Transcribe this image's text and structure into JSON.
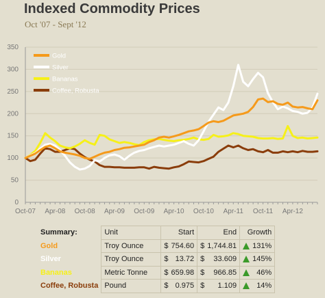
{
  "chart_data": {
    "type": "line",
    "title": "Indexed Commodity Prices",
    "subtitle": "Oct '07 - Sept '12",
    "xlabel": "",
    "ylabel": "",
    "ylim": [
      0,
      350
    ],
    "yticks": [
      0,
      50,
      100,
      150,
      200,
      250,
      300,
      350
    ],
    "xticks": [
      "Oct-07",
      "Apr-08",
      "Oct-08",
      "Apr-09",
      "Oct-09",
      "Apr-10",
      "Oct-10",
      "Apr-11",
      "Oct-11",
      "Apr-12"
    ],
    "legend_position": "top-left",
    "x_months": [
      0,
      1,
      2,
      3,
      4,
      5,
      6,
      7,
      8,
      9,
      10,
      11,
      12,
      13,
      14,
      15,
      16,
      17,
      18,
      19,
      20,
      21,
      22,
      23,
      24,
      25,
      26,
      27,
      28,
      29,
      30,
      31,
      32,
      33,
      34,
      35,
      36,
      37,
      38,
      39,
      40,
      41,
      42,
      43,
      44,
      45,
      46,
      47,
      48,
      49,
      50,
      51,
      52,
      53,
      54,
      55,
      56,
      57,
      58,
      59
    ],
    "series": [
      {
        "name": "Gold",
        "color": "#f59a1b",
        "values": [
          100,
          105,
          110,
          118,
          125,
          128,
          122,
          115,
          112,
          110,
          108,
          105,
          100,
          98,
          103,
          108,
          112,
          114,
          118,
          120,
          123,
          124,
          126,
          128,
          130,
          136,
          140,
          146,
          148,
          146,
          149,
          152,
          156,
          160,
          162,
          165,
          172,
          180,
          183,
          181,
          184,
          190,
          196,
          198,
          200,
          204,
          215,
          232,
          234,
          226,
          228,
          222,
          220,
          225,
          216,
          214,
          215,
          212,
          210,
          230
        ]
      },
      {
        "name": "Silver",
        "color": "#ffffff",
        "values": [
          100,
          106,
          111,
          121,
          130,
          132,
          128,
          118,
          105,
          90,
          80,
          74,
          76,
          82,
          95,
          92,
          100,
          106,
          108,
          104,
          96,
          105,
          112,
          116,
          118,
          122,
          125,
          128,
          126,
          128,
          130,
          134,
          138,
          132,
          128,
          140,
          160,
          182,
          198,
          214,
          208,
          225,
          262,
          310,
          272,
          262,
          278,
          292,
          282,
          246,
          226,
          210,
          216,
          212,
          206,
          204,
          200,
          202,
          214,
          245
        ]
      },
      {
        "name": "Bananas",
        "color": "#f6f019",
        "values": [
          100,
          107,
          116,
          134,
          156,
          146,
          138,
          128,
          124,
          122,
          126,
          132,
          140,
          134,
          130,
          152,
          150,
          142,
          138,
          134,
          136,
          134,
          131,
          129,
          136,
          140,
          142,
          143,
          141,
          139,
          138,
          140,
          141,
          143,
          146,
          142,
          141,
          143,
          152,
          148,
          149,
          151,
          156,
          154,
          150,
          149,
          148,
          145,
          144,
          144,
          145,
          143,
          144,
          172,
          150,
          145,
          146,
          144,
          145,
          146
        ]
      },
      {
        "name": "Coffee, Robusta",
        "color": "#8a3d0b",
        "values": [
          100,
          93,
          96,
          110,
          122,
          120,
          114,
          114,
          118,
          122,
          120,
          110,
          102,
          96,
          92,
          84,
          80,
          80,
          79,
          79,
          78,
          78,
          78,
          79,
          79,
          76,
          80,
          78,
          77,
          76,
          79,
          81,
          86,
          92,
          91,
          90,
          93,
          98,
          103,
          114,
          121,
          128,
          124,
          128,
          122,
          118,
          120,
          115,
          113,
          118,
          112,
          112,
          115,
          113,
          115,
          113,
          116,
          114,
          114,
          115
        ]
      }
    ]
  },
  "summary": {
    "header": {
      "label": "Summary:",
      "unit": "Unit",
      "start": "Start",
      "end": "End",
      "growth": "Growth"
    },
    "currency": "$",
    "rows": [
      {
        "name": "Gold",
        "color": "#f59a1b",
        "unit": "Troy Ounce",
        "start": "754.60",
        "end": "1,744.81",
        "growth": "131%"
      },
      {
        "name": "Silver",
        "color": "#ffffff",
        "unit": "Troy Ounce",
        "start": "13.72",
        "end": "33.609",
        "growth": "145%"
      },
      {
        "name": "Bananas",
        "color": "#f6f019",
        "unit": "Metric Tonne",
        "start": "659.98",
        "end": "966.85",
        "growth": "46%"
      },
      {
        "name": "Coffee, Robusta",
        "color": "#8a3d0b",
        "unit": "Pound",
        "start": "0.975",
        "end": "1.109",
        "growth": "14%"
      }
    ]
  }
}
